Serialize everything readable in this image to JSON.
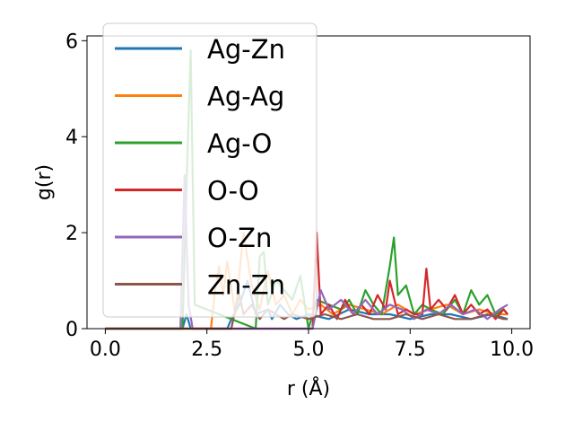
{
  "chart_data": {
    "type": "line",
    "title": "",
    "xlabel": "r (Å)",
    "ylabel": "g(r)",
    "xlim": [
      -0.45,
      10.45
    ],
    "ylim": [
      0,
      6.1
    ],
    "xticks": [
      "0.0",
      "2.5",
      "5.0",
      "7.5",
      "10.0"
    ],
    "yticks": [
      "0",
      "2",
      "4",
      "6"
    ],
    "grid": false,
    "legend_position": "top-left",
    "series": [
      {
        "name": "Ag-Zn",
        "color": "#1f77b4",
        "x": [
          0,
          1.9,
          2.0,
          2.1,
          3.0,
          3.1,
          3.3,
          3.5,
          3.7,
          4.0,
          4.1,
          4.3,
          4.5,
          4.7,
          5.0,
          5.5,
          6.0,
          6.5,
          7.0,
          7.5,
          8.0,
          8.5,
          9.0,
          9.5,
          9.9
        ],
        "y": [
          0,
          0,
          0.3,
          0,
          0,
          0.2,
          0.5,
          1.0,
          0.3,
          0.4,
          0.2,
          0.5,
          0.3,
          0.2,
          0.3,
          0.2,
          0.4,
          0.3,
          0.3,
          0.2,
          0.3,
          0.3,
          0.2,
          0.3,
          0.2
        ]
      },
      {
        "name": "Ag-Ag",
        "color": "#ff7f0e",
        "x": [
          0,
          2.6,
          2.7,
          2.8,
          2.9,
          3.0,
          3.2,
          3.4,
          3.6,
          3.8,
          4.0,
          4.2,
          4.4,
          4.6,
          4.8,
          5.0,
          5.3,
          5.6,
          6.0,
          6.4,
          6.8,
          7.2,
          7.6,
          8.0,
          8.4,
          8.8,
          9.2,
          9.6,
          9.9
        ],
        "y": [
          0,
          0,
          0.8,
          1.3,
          0.7,
          1.4,
          0.3,
          2.0,
          0.9,
          0.4,
          1.2,
          0.5,
          0.7,
          0.3,
          0.6,
          0.4,
          0.5,
          0.3,
          0.5,
          0.4,
          0.3,
          0.5,
          0.3,
          0.4,
          0.5,
          0.3,
          0.4,
          0.3,
          0.3
        ]
      },
      {
        "name": "Ag-O",
        "color": "#2ca02c",
        "x": [
          0,
          1.9,
          2.0,
          2.1,
          2.2,
          3.7,
          3.8,
          3.9,
          4.0,
          4.2,
          4.4,
          4.6,
          4.8,
          5.0,
          5.2,
          5.5,
          5.8,
          6.0,
          6.2,
          6.4,
          6.6,
          6.8,
          7.0,
          7.1,
          7.2,
          7.4,
          7.6,
          7.8,
          8.0,
          8.3,
          8.6,
          8.8,
          9.0,
          9.2,
          9.4,
          9.6,
          9.8,
          9.9
        ],
        "y": [
          0,
          0,
          3.0,
          5.8,
          0.5,
          0,
          1.5,
          1.6,
          0.5,
          1.0,
          0.8,
          0.6,
          1.1,
          0,
          0.6,
          0.5,
          0.4,
          0.6,
          0.3,
          0.8,
          0.5,
          0.3,
          1.3,
          1.9,
          0.7,
          0.9,
          0.3,
          0.5,
          0.4,
          0.3,
          0.6,
          0.3,
          0.8,
          0.5,
          0.7,
          0.3,
          0.4,
          0.3
        ]
      },
      {
        "name": "O-O",
        "color": "#d62728",
        "x": [
          0,
          5.1,
          5.2,
          5.3,
          5.5,
          5.7,
          5.9,
          6.1,
          6.3,
          6.5,
          6.7,
          6.9,
          7.0,
          7.2,
          7.4,
          7.6,
          7.8,
          7.9,
          8.0,
          8.2,
          8.4,
          8.6,
          8.8,
          9.0,
          9.2,
          9.4,
          9.6,
          9.8,
          9.9
        ],
        "y": [
          0,
          0,
          2.0,
          0.3,
          0.5,
          0.2,
          0.6,
          0.3,
          0.5,
          0.3,
          0.7,
          0.4,
          1.0,
          0.3,
          0.4,
          0.3,
          0.3,
          1.25,
          0.4,
          0.6,
          0.4,
          0.7,
          0.3,
          0.5,
          0.3,
          0.4,
          0.2,
          0.4,
          0.3
        ]
      },
      {
        "name": "O-Zn",
        "color": "#9467bd",
        "x": [
          0,
          1.85,
          1.95,
          2.05,
          2.15,
          5.1,
          5.3,
          5.5,
          5.8,
          6.1,
          6.4,
          6.7,
          7.0,
          7.3,
          7.6,
          7.9,
          8.2,
          8.5,
          8.8,
          9.1,
          9.4,
          9.7,
          9.9
        ],
        "y": [
          0,
          0,
          3.2,
          0.5,
          0,
          0,
          0.8,
          0.4,
          0.6,
          0.3,
          0.6,
          0.3,
          0.5,
          0.4,
          0.2,
          0.4,
          0.3,
          0.5,
          0.3,
          0.4,
          0.2,
          0.4,
          0.5
        ]
      },
      {
        "name": "Zn-Zn",
        "color": "#8c564b",
        "x": [
          0,
          3.1,
          3.2,
          3.3,
          3.4,
          3.6,
          3.8,
          4.0,
          4.2,
          4.4,
          4.6,
          5.0,
          5.4,
          5.8,
          6.2,
          6.6,
          7.0,
          7.4,
          7.8,
          8.2,
          8.6,
          9.0,
          9.4,
          9.8,
          9.9
        ],
        "y": [
          0,
          0,
          0.4,
          0.7,
          0.3,
          0.5,
          0.2,
          0.4,
          0.3,
          0.2,
          0.3,
          0.2,
          0.3,
          0.2,
          0.3,
          0.2,
          0.2,
          0.3,
          0.2,
          0.3,
          0.2,
          0.2,
          0.3,
          0.2,
          0.2
        ]
      }
    ]
  }
}
